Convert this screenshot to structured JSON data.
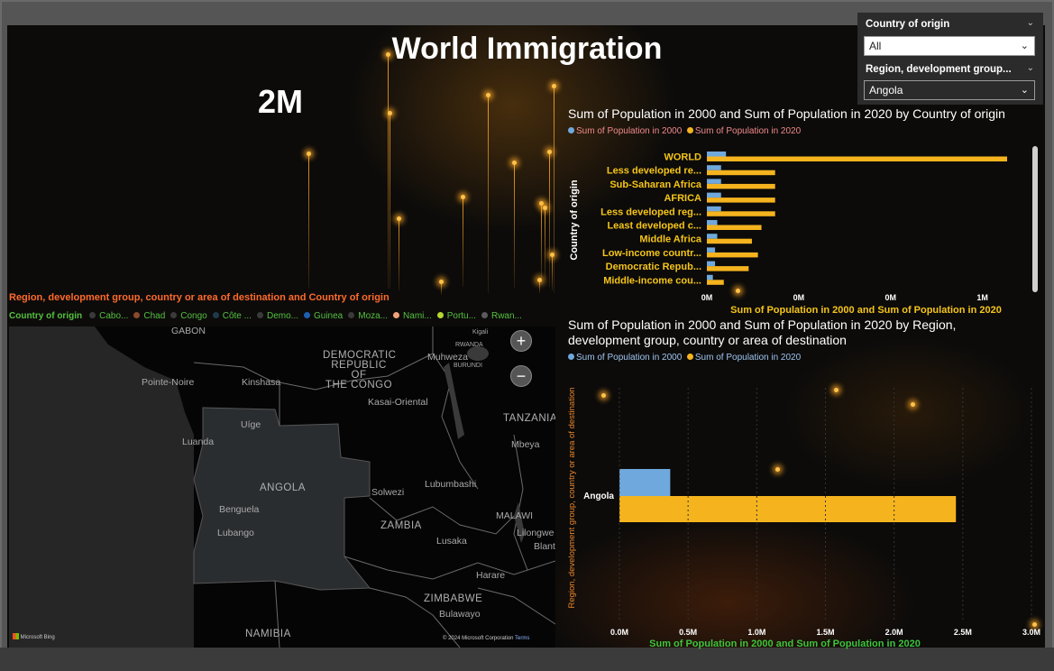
{
  "title": "World Immigration",
  "kpi": {
    "value": "2M"
  },
  "slicers": {
    "country_of_origin": {
      "title": "Country of origin",
      "value": "All"
    },
    "region": {
      "title": "Region, development group...",
      "value": "Angola"
    }
  },
  "chart_data": [
    {
      "type": "bar",
      "orientation": "horizontal",
      "title": "Sum of Population in 2000 and Sum of Population in 2020 by Country of origin",
      "xlabel": "Sum of Population in 2000 and Sum of Population in 2020",
      "ylabel": "Country of origin",
      "legend": [
        "Sum of Population in 2000",
        "Sum of Population in 2020"
      ],
      "categories": [
        "WORLD",
        "Less developed re...",
        "Sub-Saharan Africa",
        "AFRICA",
        "Less developed reg...",
        "Least developed c...",
        "Middle Africa",
        "Low-income countr...",
        "Democratic Repub...",
        "Middle-income cou..."
      ],
      "series": [
        {
          "name": "Sum of Population in 2000",
          "values": [
            70000,
            52000,
            52000,
            52000,
            52000,
            38000,
            38000,
            30000,
            30000,
            22000
          ]
        },
        {
          "name": "Sum of Population in 2020",
          "values": [
            1100000,
            250000,
            250000,
            250000,
            250000,
            200000,
            165000,
            187000,
            153000,
            62000
          ]
        }
      ],
      "xticks": [
        "0M",
        "0M",
        "0M",
        "1M"
      ],
      "xlim": [
        0,
        1100000
      ],
      "colors": {
        "2000": "#6fa8dc",
        "2020": "#f5b41e"
      }
    },
    {
      "type": "bar",
      "orientation": "horizontal",
      "title": "Sum of Population in 2000 and Sum of Population in 2020 by Region, development group, country or area of destination",
      "xlabel": "Sum of Population in 2000 and Sum of Population in 2020",
      "ylabel": "Region, development group, country or area of destination",
      "legend": [
        "Sum of Population in 2000",
        "Sum of Population in 2020"
      ],
      "categories": [
        "Angola"
      ],
      "series": [
        {
          "name": "Sum of Population in 2000",
          "values": [
            370000
          ]
        },
        {
          "name": "Sum of Population in 2020",
          "values": [
            2450000
          ]
        }
      ],
      "xticks": [
        "0.0M",
        "0.5M",
        "1.0M",
        "1.5M",
        "2.0M",
        "2.5M",
        "3.0M"
      ],
      "xlim": [
        0,
        3000000
      ],
      "colors": {
        "2000": "#6fa8dc",
        "2020": "#f5b41e"
      }
    }
  ],
  "map": {
    "title": "Region, development group, country or area of destination and Country of origin",
    "legend_title": "Country of origin",
    "legend_items": [
      {
        "label": "Cabo...",
        "color": "#3a3a3a"
      },
      {
        "label": "Chad",
        "color": "#8b4a2b"
      },
      {
        "label": "Congo",
        "color": "#3a3a3a"
      },
      {
        "label": "Côte ...",
        "color": "#1e3a4a"
      },
      {
        "label": "Demo...",
        "color": "#3a3a3a"
      },
      {
        "label": "Guinea",
        "color": "#1d5fb0"
      },
      {
        "label": "Moza...",
        "color": "#3a3a3a"
      },
      {
        "label": "Nami...",
        "color": "#f2a27a"
      },
      {
        "label": "Portu...",
        "color": "#b5d930"
      },
      {
        "label": "Rwan...",
        "color": "#5a5a5a"
      }
    ],
    "labels": {
      "gabon": "GABON",
      "drc": "DEMOCRATIC\nREPUBLIC OF\nTHE CONGO",
      "pointe_noire": "Pointe-Noire",
      "kinshasa": "Kinshasa",
      "kasai": "Kasai-Oriental",
      "tanzania": "TANZANIA",
      "uige": "Uíge",
      "luanda": "Luanda",
      "angola": "ANGOLA",
      "benguela": "Benguela",
      "lubango": "Lubango",
      "zambia": "ZAMBIA",
      "lubumbashi": "Lubumbashi",
      "solwezi": "Solwezi",
      "lusaka": "Lusaka",
      "harare": "Harare",
      "zimbabwe": "ZIMBABWE",
      "bulawayo": "Bulawayo",
      "namibia": "NAMIBIA",
      "malawi": "MALAWI",
      "lilongwe": "Lilongwe",
      "blantyre": "Blantyre",
      "mbeya": "Mbeya",
      "muhweza": "Muhweza",
      "rwanda": "RWANDA",
      "burundi": "BURUNDI",
      "kigali": "Kigali"
    },
    "attribution": "© 2024 Microsoft Corporation",
    "terms": "Terms",
    "bing": "Microsoft Bing"
  }
}
